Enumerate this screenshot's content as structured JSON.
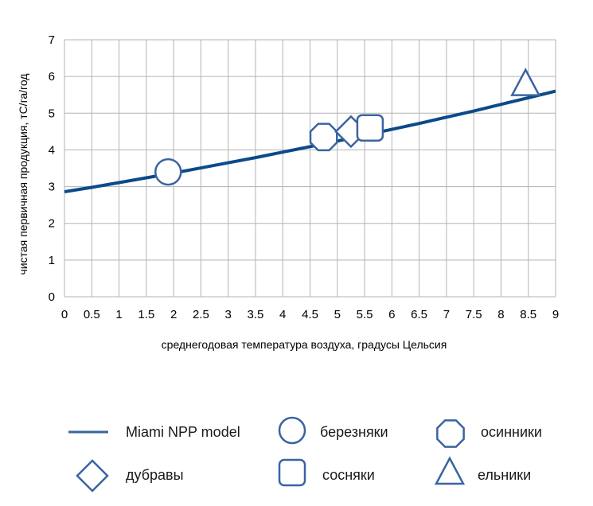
{
  "chart_data": {
    "type": "line",
    "title": "",
    "xlabel": "среднегодовая температура воздуха, градусы Цельсия",
    "ylabel": "чистая первичная продукция, тС/га/год",
    "xlim": [
      0,
      9
    ],
    "ylim": [
      0,
      7
    ],
    "x_ticks": [
      "0",
      "0.5",
      "1",
      "1.5",
      "2",
      "2.5",
      "3",
      "3.5",
      "4",
      "4.5",
      "5",
      "5.5",
      "6",
      "6.5",
      "7",
      "7.5",
      "8",
      "8.5",
      "9"
    ],
    "y_ticks": [
      "0",
      "1",
      "2",
      "3",
      "4",
      "5",
      "6",
      "7"
    ],
    "grid": true,
    "legend_position": "bottom",
    "line_color": "#0b4a8a",
    "marker_color": "#3a64a0",
    "series": [
      {
        "name": "Miami NPP model",
        "kind": "line",
        "x": [
          0,
          0.5,
          1,
          1.5,
          2,
          2.5,
          3,
          3.5,
          4,
          4.5,
          5,
          5.5,
          6,
          6.5,
          7,
          7.5,
          8,
          8.5,
          9
        ],
        "y": [
          2.86,
          2.98,
          3.11,
          3.24,
          3.37,
          3.51,
          3.65,
          3.79,
          3.94,
          4.09,
          4.24,
          4.4,
          4.56,
          4.72,
          4.89,
          5.06,
          5.24,
          5.42,
          5.6
        ]
      },
      {
        "name": "березняки",
        "kind": "marker",
        "marker": "circle",
        "x": [
          1.9
        ],
        "y": [
          3.4
        ]
      },
      {
        "name": "осинники",
        "kind": "marker",
        "marker": "octagon",
        "x": [
          4.75
        ],
        "y": [
          4.35
        ]
      },
      {
        "name": "дубравы",
        "kind": "marker",
        "marker": "diamond",
        "x": [
          5.25
        ],
        "y": [
          4.5
        ]
      },
      {
        "name": "сосняки",
        "kind": "marker",
        "marker": "square",
        "x": [
          5.6
        ],
        "y": [
          4.6
        ]
      },
      {
        "name": "ельники",
        "kind": "marker",
        "marker": "triangle",
        "x": [
          8.45
        ],
        "y": [
          5.75
        ]
      }
    ]
  }
}
